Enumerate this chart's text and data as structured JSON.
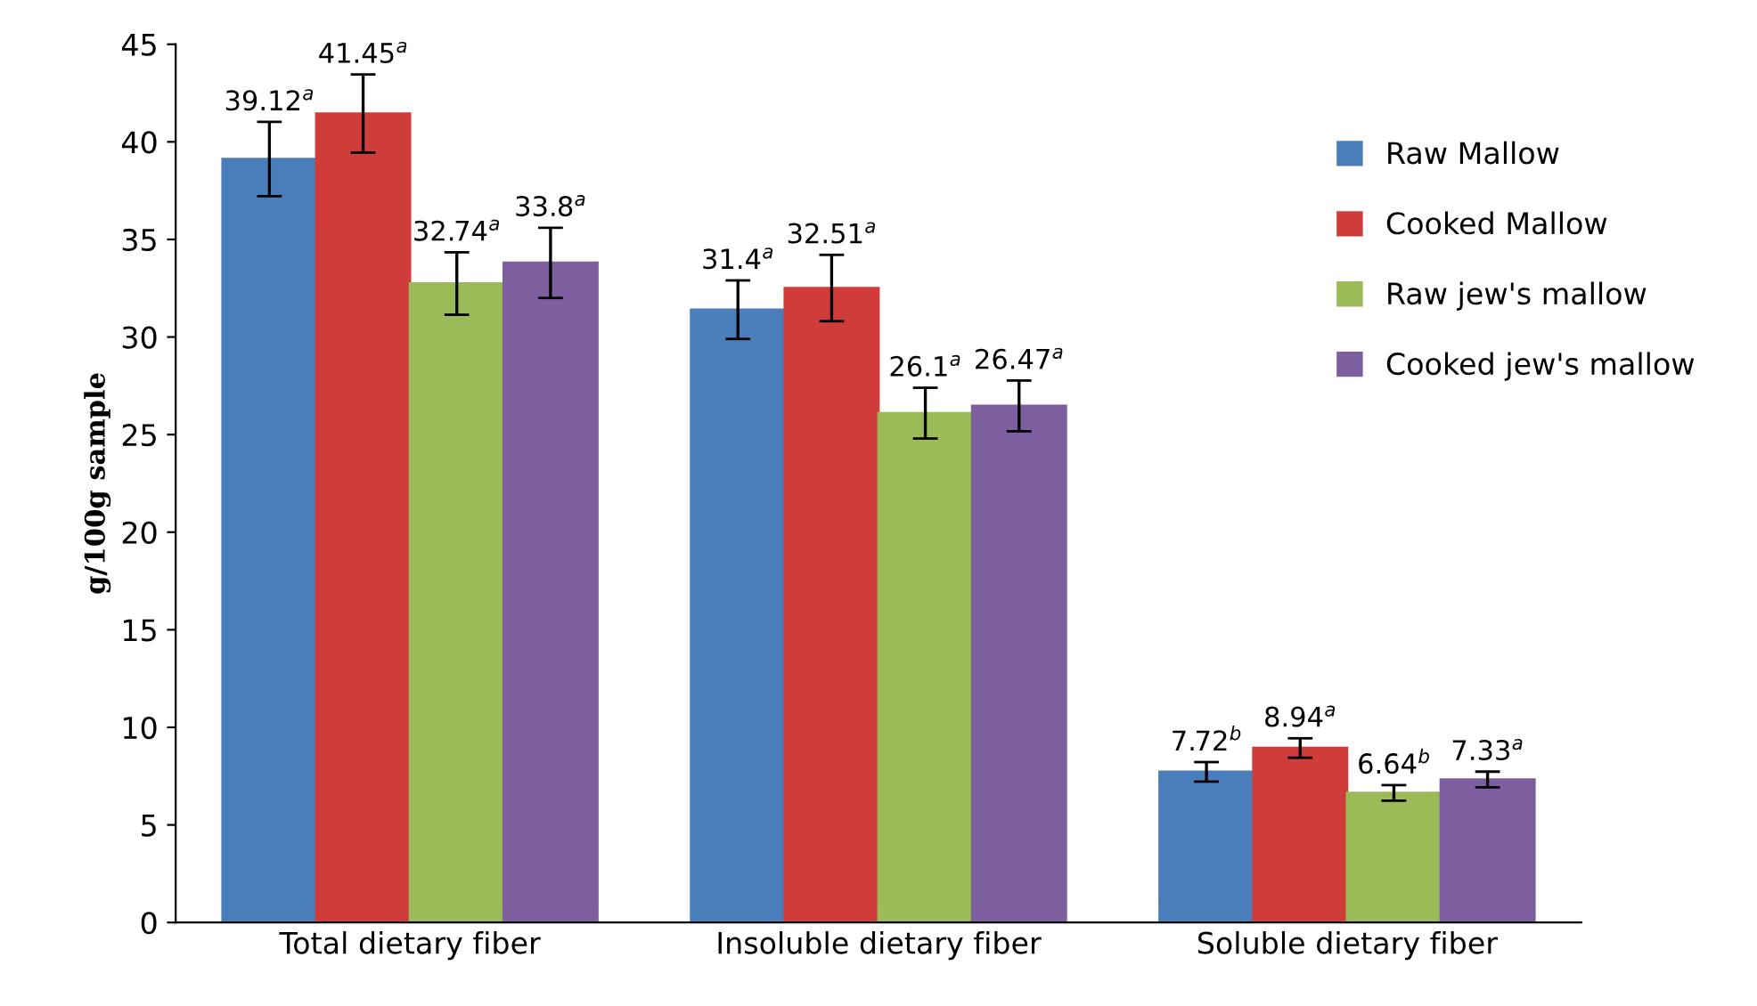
{
  "chart_data": {
    "type": "bar",
    "ylabel": "g/100g sample",
    "categories": [
      "Total dietary fiber",
      "Insoluble dietary fiber",
      "Soluble dietary fiber"
    ],
    "series": [
      {
        "name": "Raw Mallow",
        "color": "#4a7ebb",
        "values": [
          39.12,
          31.4,
          7.72
        ],
        "errors": [
          1.9,
          1.5,
          0.5
        ],
        "value_labels": [
          "39.12$^{a}$",
          "31.4$^{a}$",
          "7.72$^{b}$"
        ]
      },
      {
        "name": "Cooked Mallow",
        "color": "#d03c3a",
        "values": [
          41.45,
          32.51,
          8.94
        ],
        "errors": [
          2.0,
          1.7,
          0.5
        ],
        "value_labels": [
          "41.45$^{a}$",
          "32.51$^{a}$",
          "8.94$^{a}$"
        ]
      },
      {
        "name": "Raw jew's mallow",
        "color": "#9bbb59",
        "values": [
          32.74,
          26.1,
          6.64
        ],
        "errors": [
          1.6,
          1.3,
          0.4
        ],
        "value_labels": [
          "32.74$^{a}$",
          "26.1$^{a}$",
          "6.64$^{b}$"
        ]
      },
      {
        "name": "Cooked jew's mallow",
        "color": "#7d5fa0",
        "values": [
          33.8,
          26.47,
          7.33
        ],
        "errors": [
          1.8,
          1.3,
          0.4
        ],
        "value_labels": [
          "33.8$^{a}$",
          "26.47$^{a}$",
          "7.33$^{a}$"
        ]
      }
    ],
    "ylim": [
      0,
      45
    ],
    "yticks": [
      0,
      5,
      10,
      15,
      20,
      25,
      30,
      35,
      40,
      45
    ],
    "grid": false,
    "legend": "top right"
  }
}
